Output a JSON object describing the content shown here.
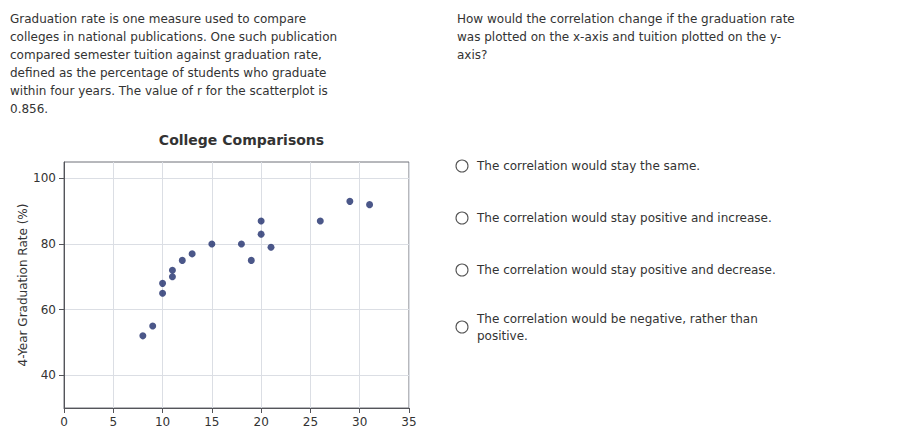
{
  "chart_data": {
    "type": "scatter",
    "title": "College Comparisons",
    "ylabel": "4-Year Graduation Rate (%)",
    "x": [
      8,
      9,
      10,
      10,
      11,
      11,
      12,
      13,
      15,
      18,
      19,
      20,
      20,
      21,
      26,
      29,
      31
    ],
    "values": [
      52,
      55,
      65,
      68,
      70,
      72,
      75,
      77,
      80,
      80,
      75,
      83,
      87,
      79,
      87,
      93,
      92
    ],
    "color": "#1e2d6b",
    "xlim": [
      0,
      35
    ],
    "ylim": [
      30,
      105
    ],
    "xticks": [
      0,
      5,
      10,
      15,
      20,
      25,
      30,
      35
    ],
    "yticks": [
      40,
      60,
      80,
      100
    ],
    "grid": true,
    "annotations": [
      "Graduation rate is one measure used to compare\ncolleges in national publications. One such publication\ncompared semester tuition against graduation rate,\ndefined as the percentage of students who graduate\nwithin four years. The value of r for the scatterplot is\n0.856.",
      "How would the correlation change if the graduation rate\nwas plotted on the x-axis and tuition plotted on the y-\naxis?",
      "The correlation would stay the same.",
      "The correlation would stay positive and increase.",
      "The correlation would stay positive and decrease.",
      "The correlation would be negative, rather than\npositive."
    ]
  }
}
